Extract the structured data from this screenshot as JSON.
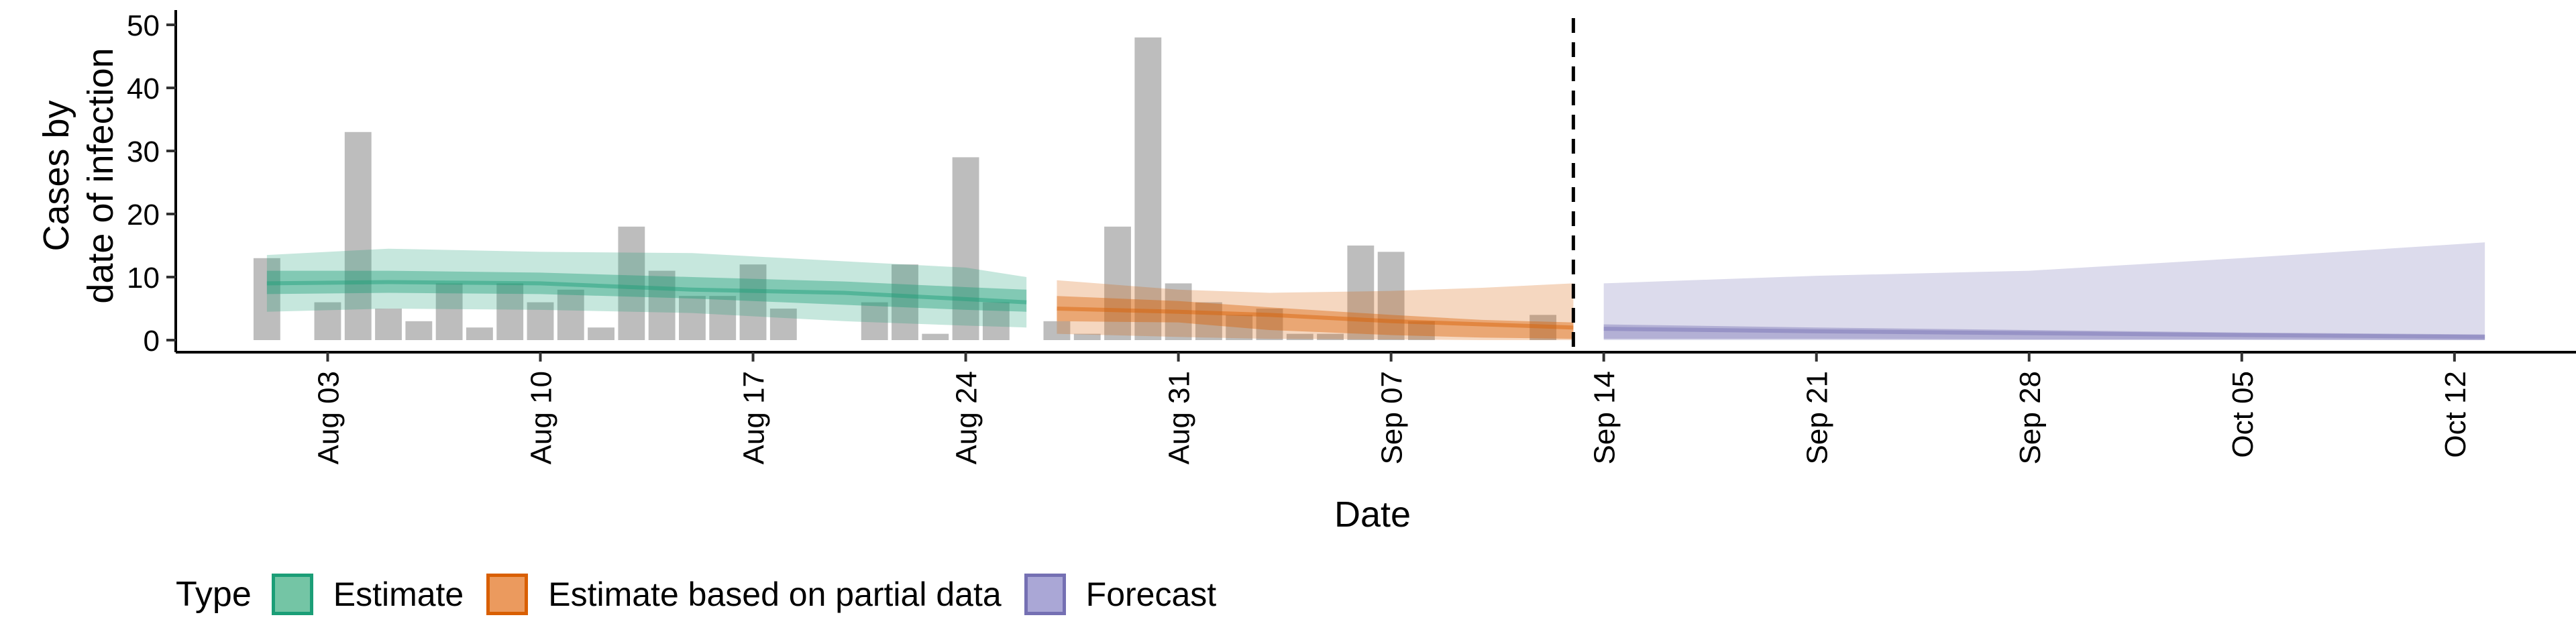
{
  "chart_data": {
    "type": "bar",
    "ylabel_lines": [
      "Cases by",
      "date of infection"
    ],
    "xlabel": "Date",
    "ylim": [
      0,
      50
    ],
    "yticks": [
      0,
      10,
      20,
      30,
      40,
      50
    ],
    "date_range": [
      "2023-07-29",
      "2023-10-16"
    ],
    "xticks": [
      {
        "date": "2023-08-03",
        "label": "Aug 03"
      },
      {
        "date": "2023-08-10",
        "label": "Aug 10"
      },
      {
        "date": "2023-08-17",
        "label": "Aug 17"
      },
      {
        "date": "2023-08-24",
        "label": "Aug 24"
      },
      {
        "date": "2023-08-31",
        "label": "Aug 31"
      },
      {
        "date": "2023-09-07",
        "label": "Sep 07"
      },
      {
        "date": "2023-09-14",
        "label": "Sep 14"
      },
      {
        "date": "2023-09-21",
        "label": "Sep 21"
      },
      {
        "date": "2023-09-28",
        "label": "Sep 28"
      },
      {
        "date": "2023-10-05",
        "label": "Oct 05"
      },
      {
        "date": "2023-10-12",
        "label": "Oct 12"
      }
    ],
    "cutoff_date": "2023-09-13",
    "bars": [
      {
        "date": "2023-08-01",
        "value": 13
      },
      {
        "date": "2023-08-03",
        "value": 6
      },
      {
        "date": "2023-08-04",
        "value": 33
      },
      {
        "date": "2023-08-05",
        "value": 5
      },
      {
        "date": "2023-08-06",
        "value": 3
      },
      {
        "date": "2023-08-07",
        "value": 9
      },
      {
        "date": "2023-08-08",
        "value": 2
      },
      {
        "date": "2023-08-09",
        "value": 9
      },
      {
        "date": "2023-08-10",
        "value": 6
      },
      {
        "date": "2023-08-11",
        "value": 8
      },
      {
        "date": "2023-08-12",
        "value": 2
      },
      {
        "date": "2023-08-13",
        "value": 18
      },
      {
        "date": "2023-08-14",
        "value": 11
      },
      {
        "date": "2023-08-15",
        "value": 7
      },
      {
        "date": "2023-08-16",
        "value": 7
      },
      {
        "date": "2023-08-17",
        "value": 12
      },
      {
        "date": "2023-08-18",
        "value": 5
      },
      {
        "date": "2023-08-21",
        "value": 6
      },
      {
        "date": "2023-08-22",
        "value": 12
      },
      {
        "date": "2023-08-23",
        "value": 1
      },
      {
        "date": "2023-08-24",
        "value": 29
      },
      {
        "date": "2023-08-25",
        "value": 6
      },
      {
        "date": "2023-08-27",
        "value": 3
      },
      {
        "date": "2023-08-28",
        "value": 1
      },
      {
        "date": "2023-08-29",
        "value": 18
      },
      {
        "date": "2023-08-30",
        "value": 48
      },
      {
        "date": "2023-08-31",
        "value": 9
      },
      {
        "date": "2023-09-01",
        "value": 6
      },
      {
        "date": "2023-09-02",
        "value": 4
      },
      {
        "date": "2023-09-03",
        "value": 5
      },
      {
        "date": "2023-09-04",
        "value": 1
      },
      {
        "date": "2023-09-05",
        "value": 1
      },
      {
        "date": "2023-09-06",
        "value": 15
      },
      {
        "date": "2023-09-07",
        "value": 14
      },
      {
        "date": "2023-09-08",
        "value": 3
      },
      {
        "date": "2023-09-12",
        "value": 4
      }
    ],
    "series": [
      {
        "name": "Estimate",
        "color": "#1b9e77",
        "x": [
          "2023-08-01",
          "2023-08-05",
          "2023-08-10",
          "2023-08-15",
          "2023-08-20",
          "2023-08-24",
          "2023-08-26"
        ],
        "median": [
          9,
          9.2,
          9,
          8,
          7.5,
          6.5,
          6
        ],
        "inner": [
          [
            7.3,
            11
          ],
          [
            7.5,
            11
          ],
          [
            7.3,
            10.7
          ],
          [
            6.6,
            10
          ],
          [
            5.6,
            9.3
          ],
          [
            4.8,
            8.4
          ],
          [
            4.5,
            8
          ]
        ],
        "outer": [
          [
            4.5,
            13.5
          ],
          [
            5,
            14.5
          ],
          [
            4.8,
            14
          ],
          [
            4.3,
            13.8
          ],
          [
            3,
            12.5
          ],
          [
            2.3,
            11.5
          ],
          [
            2,
            10
          ]
        ]
      },
      {
        "name": "Estimate based on partial data",
        "color": "#d95f02",
        "x": [
          "2023-08-27",
          "2023-08-31",
          "2023-09-03",
          "2023-09-07",
          "2023-09-10",
          "2023-09-13"
        ],
        "median": [
          5,
          4.5,
          4,
          3,
          2.5,
          2
        ],
        "inner": [
          [
            3,
            7
          ],
          [
            2.8,
            6.2
          ],
          [
            1.6,
            5.2
          ],
          [
            0.8,
            4
          ],
          [
            0.4,
            3.2
          ],
          [
            0.2,
            2.8
          ]
        ],
        "outer": [
          [
            1,
            9.5
          ],
          [
            0.5,
            8
          ],
          [
            0.2,
            7.5
          ],
          [
            0.1,
            7.8
          ],
          [
            0,
            8.3
          ],
          [
            0,
            9
          ]
        ]
      },
      {
        "name": "Forecast",
        "color": "#7570b3",
        "x": [
          "2023-09-14",
          "2023-09-21",
          "2023-09-28",
          "2023-10-05",
          "2023-10-13"
        ],
        "median": [
          1.8,
          1.4,
          1.1,
          0.8,
          0.5
        ],
        "inner": [
          [
            0.2,
            2.5
          ],
          [
            0.2,
            2
          ],
          [
            0.1,
            1.6
          ],
          [
            0.1,
            1.2
          ],
          [
            0,
            0.9
          ]
        ],
        "outer": [
          [
            0,
            9
          ],
          [
            0,
            10.2
          ],
          [
            0,
            11
          ],
          [
            0,
            13
          ],
          [
            0,
            15.5
          ]
        ]
      }
    ],
    "legend": {
      "title": "Type",
      "position": "bottom",
      "items": [
        {
          "label": "Estimate",
          "fill": "#74c5a5",
          "border": "#1b9e77"
        },
        {
          "label": "Estimate based on partial data",
          "fill": "#eb9a5e",
          "border": "#d95f02"
        },
        {
          "label": "Forecast",
          "fill": "#aaa7d6",
          "border": "#7570b3"
        }
      ]
    },
    "bar_color": "#bdbdbd",
    "grid": false
  }
}
